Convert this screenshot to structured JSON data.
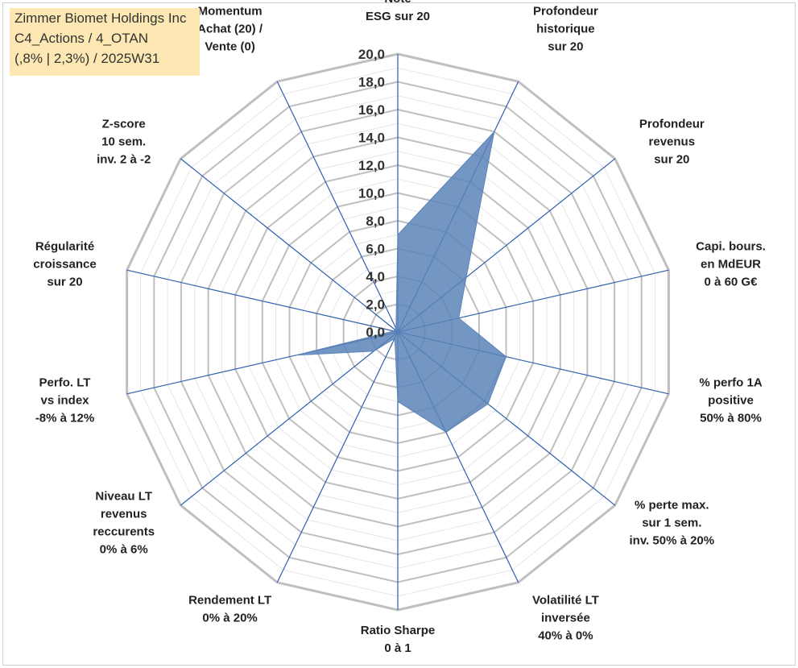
{
  "info_box": {
    "line1": "Zimmer Biomet Holdings Inc",
    "line2": "C4_Actions / 4_OTAN",
    "line3": "(,8% | 2,3%) / 2025W31"
  },
  "colors": {
    "fill": "#5b84b8",
    "spoke": "#2f5fae",
    "grid_major": "#bfbfbf",
    "grid_minor": "#e6e6e6",
    "info_bg": "#fde8b3"
  },
  "chart_data": {
    "type": "radar",
    "rlim": [
      0,
      20
    ],
    "ticks": [
      "0,0",
      "2,0",
      "4,0",
      "6,0",
      "8,0",
      "10,0",
      "12,0",
      "14,0",
      "16,0",
      "18,0",
      "20,0"
    ],
    "axes": [
      {
        "label": [
          "Note",
          "ESG sur 20"
        ],
        "value": 7.0
      },
      {
        "label": [
          "Profondeur",
          "historique",
          "sur 20"
        ],
        "value": 16.0
      },
      {
        "label": [
          "Profondeur",
          "revenus",
          "sur 20"
        ],
        "value": 6.3
      },
      {
        "label": [
          "Capi. bours.",
          "en MdEUR",
          "0 à 60 G€"
        ],
        "value": 4.5
      },
      {
        "label": [
          "% perfo 1A",
          "positive",
          "50% à 80%"
        ],
        "value": 8.0
      },
      {
        "label": [
          "% perte max.",
          "sur 1 sem.",
          "inv. 50% à 20%"
        ],
        "value": 8.3
      },
      {
        "label": [
          "Volatilité LT",
          "inversée",
          "40% à 0%"
        ],
        "value": 8.0
      },
      {
        "label": [
          "Ratio Sharpe",
          "0 à 1"
        ],
        "value": 5.0
      },
      {
        "label": [
          "Rendement LT",
          "0% à 20%"
        ],
        "value": 0.5
      },
      {
        "label": [
          "Niveau LT",
          "revenus",
          "reccurents",
          "0% à 6%"
        ],
        "value": 2.2
      },
      {
        "label": [
          "Perfo. LT",
          "vs index",
          "-8% à 12%"
        ],
        "value": 7.5
      },
      {
        "label": [
          "Régularité",
          "croissance",
          "sur 20"
        ],
        "value": 0.3
      },
      {
        "label": [
          "Z-score",
          "10 sem.",
          "inv. 2 à -2"
        ],
        "value": 0.3
      },
      {
        "label": [
          "Momentum",
          "Achat (20) /",
          "Vente (0)"
        ],
        "value": 0.3
      }
    ]
  }
}
